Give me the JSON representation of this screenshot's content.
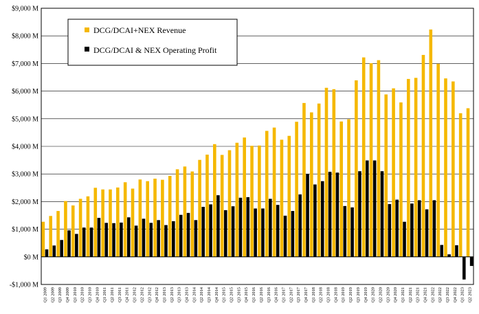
{
  "chart_data": {
    "type": "bar",
    "title": "",
    "xlabel": "",
    "ylabel": "",
    "ylim": [
      -1000,
      9000
    ],
    "y_ticks": [
      -1000,
      0,
      1000,
      2000,
      3000,
      4000,
      5000,
      6000,
      7000,
      8000,
      9000
    ],
    "y_tick_labels": [
      "-$1,000 M",
      "$0 M",
      "$1,000 M",
      "$2,000 M",
      "$3,000 M",
      "$4,000 M",
      "$5,000 M",
      "$6,000 M",
      "$7,000 M",
      "$8,000 M",
      "$9,000 M"
    ],
    "grid": true,
    "legend_position": "top-left",
    "categories": [
      "Q1 2009",
      "Q2 2009",
      "Q3 2009",
      "Q4 2009",
      "Q1 2010",
      "Q2 2010",
      "Q3 2010",
      "Q4 2010",
      "Q1 2011",
      "Q2 2011",
      "Q3 2011",
      "Q4 2011",
      "Q1 2012",
      "Q2 2012",
      "Q3 2012",
      "Q4 2012",
      "Q1 2013",
      "Q2 2013",
      "Q3 2013",
      "Q4 2013",
      "Q1 2014",
      "Q2 2014",
      "Q3 2014",
      "Q4 2014",
      "Q1 2015",
      "Q2 2015",
      "Q3 2015",
      "Q4 2015",
      "Q1 2016",
      "Q2 2016",
      "Q3 2016",
      "Q4 2016",
      "Q1 2017",
      "Q2 2017",
      "Q3 2017",
      "Q4 2017",
      "Q1 2018",
      "Q2 2018",
      "Q3 2018",
      "Q4 2018",
      "Q1 2019",
      "Q2 2019",
      "Q3 2019",
      "Q4 2019",
      "Q1 2020",
      "Q2 2020",
      "Q3 2020",
      "Q4 2020",
      "Q1 2021",
      "Q2 2021",
      "Q3 2021",
      "Q4 2021",
      "Q1 2022",
      "Q2 2022",
      "Q3 2022",
      "Q4 2022",
      "Q1 2023",
      "Q2 2023"
    ],
    "series": [
      {
        "name": "DCG/DCAI+NEX Revenue",
        "color": "#F5B800",
        "values": [
          1270,
          1480,
          1660,
          2020,
          1860,
          2100,
          2190,
          2500,
          2440,
          2440,
          2510,
          2700,
          2470,
          2800,
          2740,
          2830,
          2790,
          2930,
          3170,
          3270,
          3090,
          3510,
          3700,
          4080,
          3690,
          3860,
          4130,
          4320,
          4020,
          4030,
          4560,
          4680,
          4240,
          4380,
          4890,
          5570,
          5230,
          5550,
          6120,
          6070,
          4900,
          4980,
          6390,
          7220,
          7010,
          7120,
          5880,
          6100,
          5590,
          6440,
          6480,
          7310,
          8230,
          6990,
          6460,
          6350,
          5200,
          5380
        ]
      },
      {
        "name": "DCG/DCAI & NEX Operating Profit",
        "color": "#000000",
        "values": [
          270,
          410,
          610,
          960,
          830,
          1060,
          1060,
          1410,
          1230,
          1220,
          1240,
          1430,
          1130,
          1380,
          1230,
          1330,
          1150,
          1290,
          1520,
          1590,
          1330,
          1810,
          1900,
          2230,
          1690,
          1830,
          2140,
          2160,
          1750,
          1750,
          2100,
          1880,
          1490,
          1660,
          2260,
          2990,
          2620,
          2740,
          3080,
          3050,
          1840,
          1790,
          3100,
          3490,
          3490,
          3100,
          1910,
          2070,
          1270,
          1930,
          2050,
          1720,
          2050,
          430,
          90,
          420,
          -820,
          -330
        ]
      }
    ]
  }
}
